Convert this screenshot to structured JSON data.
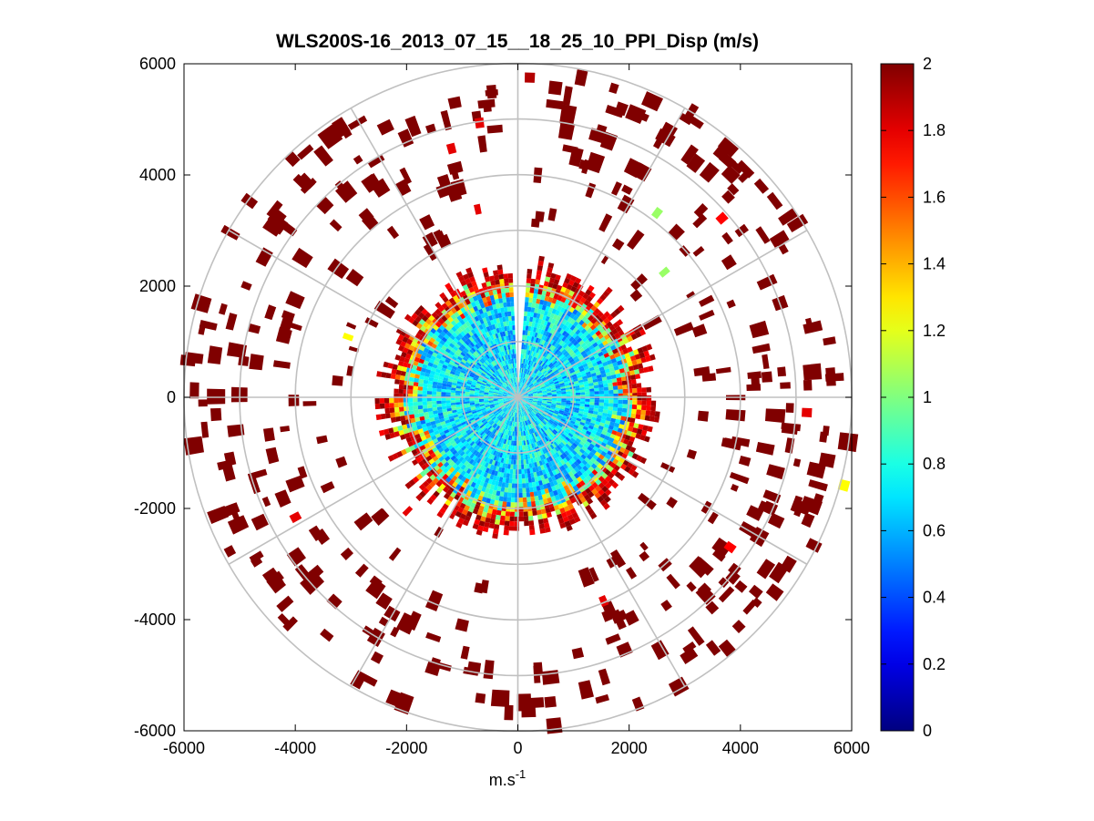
{
  "chart_data": {
    "type": "heatmap",
    "subtype": "polar-ppi",
    "title": "WLS200S-16_2013_07_15__18_25_10_PPI_Disp (m/s)",
    "xlabel": "m.s",
    "xlabel_superscript": "-1",
    "ylabel": "",
    "xlim": [
      -6000,
      6000
    ],
    "ylim": [
      -6000,
      6000
    ],
    "x_ticks": [
      -6000,
      -4000,
      -2000,
      0,
      2000,
      4000,
      6000
    ],
    "y_ticks": [
      6000,
      4000,
      2000,
      0,
      -2000,
      -4000,
      -6000
    ],
    "x_tick_labels": [
      "-6000",
      "-4000",
      "-2000",
      "0",
      "2000",
      "4000",
      "6000"
    ],
    "y_tick_labels": [
      "6000",
      "4000",
      "2000",
      "0",
      "-2000",
      "-4000",
      "-6000"
    ],
    "polar_grid": {
      "ring_radii": [
        1000,
        2000,
        3000,
        4000,
        5000,
        6000
      ],
      "spoke_angles_deg": [
        0,
        30,
        60,
        90,
        120,
        150,
        180,
        210,
        240,
        270,
        300,
        330
      ]
    },
    "colorbar": {
      "range": [
        0,
        2
      ],
      "ticks": [
        0,
        0.2,
        0.4,
        0.6,
        0.8,
        1,
        1.2,
        1.4,
        1.6,
        1.8,
        2
      ],
      "tick_labels": [
        "0",
        "0.2",
        "0.4",
        "0.6",
        "0.8",
        "1",
        "1.2",
        "1.4",
        "1.6",
        "1.8",
        "2"
      ],
      "colormap": "jet"
    },
    "field": {
      "dense_core_radius": 2300,
      "dense_core_typical_value": 0.7,
      "core_edge_value": 2,
      "outer_sparse_typical_value": 2,
      "max_range": 6000,
      "gap_sector_deg": [
        88,
        92
      ],
      "outlier_cells": [
        {
          "x": 300,
          "y": 5650,
          "value": 1.9
        },
        {
          "x": -600,
          "y": 4850,
          "value": 1.8
        },
        {
          "x": -1100,
          "y": 4400,
          "value": 1.8
        },
        {
          "x": -650,
          "y": 3300,
          "value": 1.8
        },
        {
          "x": 2500,
          "y": 3200,
          "value": 1.05
        },
        {
          "x": 3650,
          "y": 3100,
          "value": 1.75
        },
        {
          "x": 2600,
          "y": 2150,
          "value": 1.05
        },
        {
          "x": -2950,
          "y": 1100,
          "value": 1.25
        },
        {
          "x": -1950,
          "y": -1950,
          "value": 1.8
        },
        {
          "x": -3950,
          "y": -2050,
          "value": 1.8
        },
        {
          "x": 5100,
          "y": -350,
          "value": 1.8
        },
        {
          "x": 5750,
          "y": -1650,
          "value": 1.25
        },
        {
          "x": 3700,
          "y": -2700,
          "value": 1.75
        },
        {
          "x": 1450,
          "y": -3600,
          "value": 1.8
        }
      ]
    }
  }
}
